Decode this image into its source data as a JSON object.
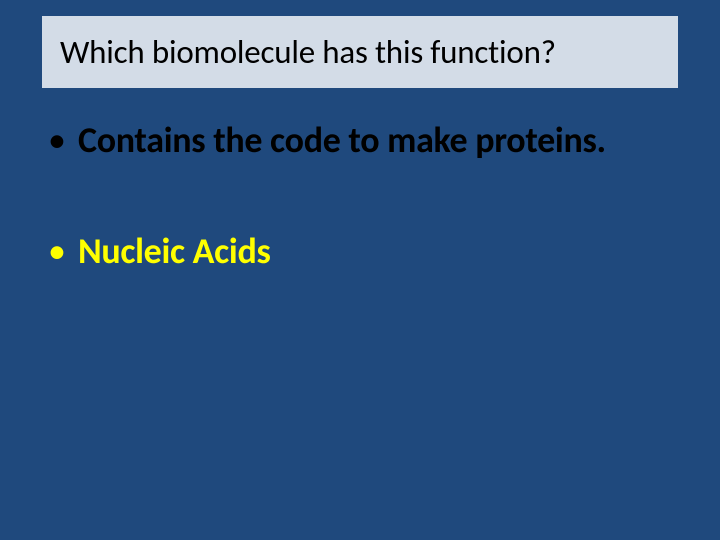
{
  "slide": {
    "background_color": "#1f497d",
    "title_card": {
      "background_color": "#d3dce7",
      "text": "Which biomolecule has this function?",
      "text_color": "#000000",
      "font_size_pt": 28
    },
    "bullets": [
      {
        "text": "Contains the code to make proteins.",
        "text_color": "#000000",
        "font_size_pt": 32,
        "font_weight": "bold"
      },
      {
        "text": "Nucleic Acids",
        "text_color": "#ffff00",
        "font_size_pt": 32,
        "font_weight": "bold"
      }
    ]
  }
}
